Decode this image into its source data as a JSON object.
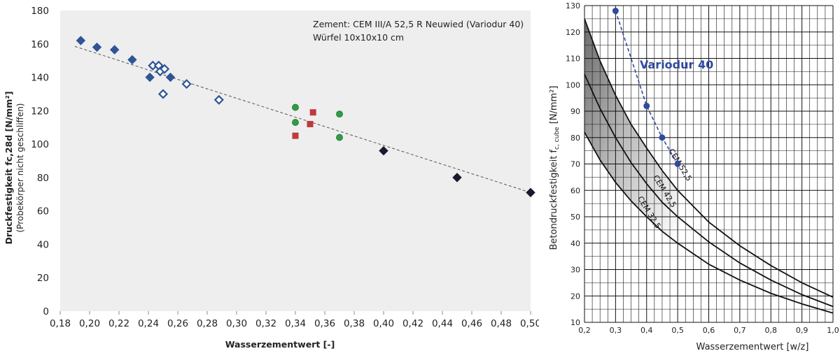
{
  "chart_data": [
    {
      "type": "scatter",
      "title": "",
      "xlabel": "Wasserzementwert [-]",
      "ylabel": "Druckfestigkeit fc,28d  [N/mm²]",
      "ylabel2": "(Probekörper nicht geschliffen)",
      "annotation_line1": "Zement: CEM III/A 52,5 R Neuwied (Variodur 40)",
      "annotation_line2": "Würfel 10x10x10 cm",
      "xlim": [
        0.18,
        0.5
      ],
      "ylim": [
        0,
        180
      ],
      "x_ticks": [
        0.18,
        0.2,
        0.22,
        0.24,
        0.26,
        0.28,
        0.3,
        0.32,
        0.34,
        0.36,
        0.38,
        0.4,
        0.42,
        0.44,
        0.46,
        0.48,
        0.5
      ],
      "x_tick_labels": [
        "0,18",
        "0,20",
        "0,22",
        "0,24",
        "0,26",
        "0,28",
        "0,30",
        "0,32",
        "0,34",
        "0,36",
        "0,38",
        "0,40",
        "0,42",
        "0,44",
        "0,46",
        "0,48",
        "0,50"
      ],
      "y_ticks": [
        0,
        20,
        40,
        60,
        80,
        100,
        120,
        140,
        160,
        180
      ],
      "y_tick_labels": [
        "0",
        "20",
        "40",
        "60",
        "80",
        "100",
        "120",
        "140",
        "160",
        "180"
      ],
      "grid": false,
      "background": "#eeeeee",
      "trendline": {
        "x": [
          0.19,
          0.5
        ],
        "y": [
          158.5,
          71
        ],
        "color": "#555555",
        "style": "dashed"
      },
      "series": [
        {
          "marker": "diamond-filled",
          "color": "#2f5597",
          "points": [
            [
              0.194,
              162
            ],
            [
              0.205,
              158
            ],
            [
              0.217,
              156.5
            ],
            [
              0.229,
              150.5
            ],
            [
              0.241,
              140
            ],
            [
              0.255,
              140
            ]
          ]
        },
        {
          "marker": "diamond-open",
          "color": "#2f5597",
          "points": [
            [
              0.243,
              147
            ],
            [
              0.247,
              147
            ],
            [
              0.248,
              143.5
            ],
            [
              0.251,
              145
            ],
            [
              0.25,
              130
            ],
            [
              0.266,
              136
            ],
            [
              0.288,
              126.5
            ]
          ]
        },
        {
          "marker": "circle",
          "color": "#2e9e44",
          "points": [
            [
              0.34,
              122
            ],
            [
              0.34,
              113
            ],
            [
              0.37,
              118
            ],
            [
              0.37,
              104
            ]
          ]
        },
        {
          "marker": "square",
          "color": "#c0393b",
          "points": [
            [
              0.352,
              119
            ],
            [
              0.35,
              112
            ],
            [
              0.34,
              105
            ]
          ]
        },
        {
          "marker": "diamond-filled",
          "color": "#1a1a2e",
          "points": [
            [
              0.4,
              96
            ],
            [
              0.45,
              80
            ],
            [
              0.5,
              71
            ]
          ]
        }
      ]
    },
    {
      "type": "line",
      "title": "",
      "xlabel": "Wasserzementwert [w/z]",
      "ylabel": "Betondruckfestigkeit f",
      "ylabel_sub": "c, cube",
      "ylabel_unit": " [N/mm²]",
      "xlim": [
        0.2,
        1.0
      ],
      "ylim": [
        10,
        130
      ],
      "x_ticks": [
        0.2,
        0.3,
        0.4,
        0.5,
        0.6,
        0.7,
        0.8,
        0.9,
        1.0
      ],
      "x_tick_labels": [
        "0,2",
        "0,3",
        "0,4",
        "0,5",
        "0,6",
        "0,7",
        "0,8",
        "0,9",
        "1,0"
      ],
      "y_ticks": [
        10,
        20,
        30,
        40,
        50,
        60,
        70,
        80,
        90,
        100,
        110,
        120,
        130
      ],
      "y_tick_labels": [
        "10",
        "20",
        "30",
        "40",
        "50",
        "60",
        "70",
        "80",
        "90",
        "100",
        "110",
        "120",
        "130"
      ],
      "grid": true,
      "curves": [
        {
          "name": "CEM 52,5",
          "x": [
            0.2,
            0.25,
            0.3,
            0.35,
            0.4,
            0.45,
            0.5,
            0.6,
            0.7,
            0.8,
            0.9,
            1.0
          ],
          "y": [
            125,
            109,
            96,
            85,
            76,
            67.5,
            60,
            48,
            39,
            31.5,
            25,
            19.5
          ]
        },
        {
          "name": "CEM 42,5",
          "x": [
            0.2,
            0.25,
            0.3,
            0.35,
            0.4,
            0.45,
            0.5,
            0.6,
            0.7,
            0.8,
            0.9,
            1.0
          ],
          "y": [
            104,
            91,
            80,
            70.5,
            62.5,
            55.5,
            50,
            40.5,
            32.5,
            26,
            20.5,
            16
          ]
        },
        {
          "name": "CEM 32,5",
          "x": [
            0.2,
            0.25,
            0.3,
            0.35,
            0.4,
            0.45,
            0.5,
            0.6,
            0.7,
            0.8,
            0.9,
            1.0
          ],
          "y": [
            82,
            71.5,
            63,
            56,
            50,
            44.5,
            40,
            32,
            26,
            21,
            17,
            13.5
          ]
        }
      ],
      "variodur": {
        "name": "Variodur 40",
        "color": "#2f4a9e",
        "x": [
          0.3,
          0.4,
          0.45,
          0.5
        ],
        "y": [
          128,
          92,
          80,
          70
        ]
      }
    }
  ]
}
